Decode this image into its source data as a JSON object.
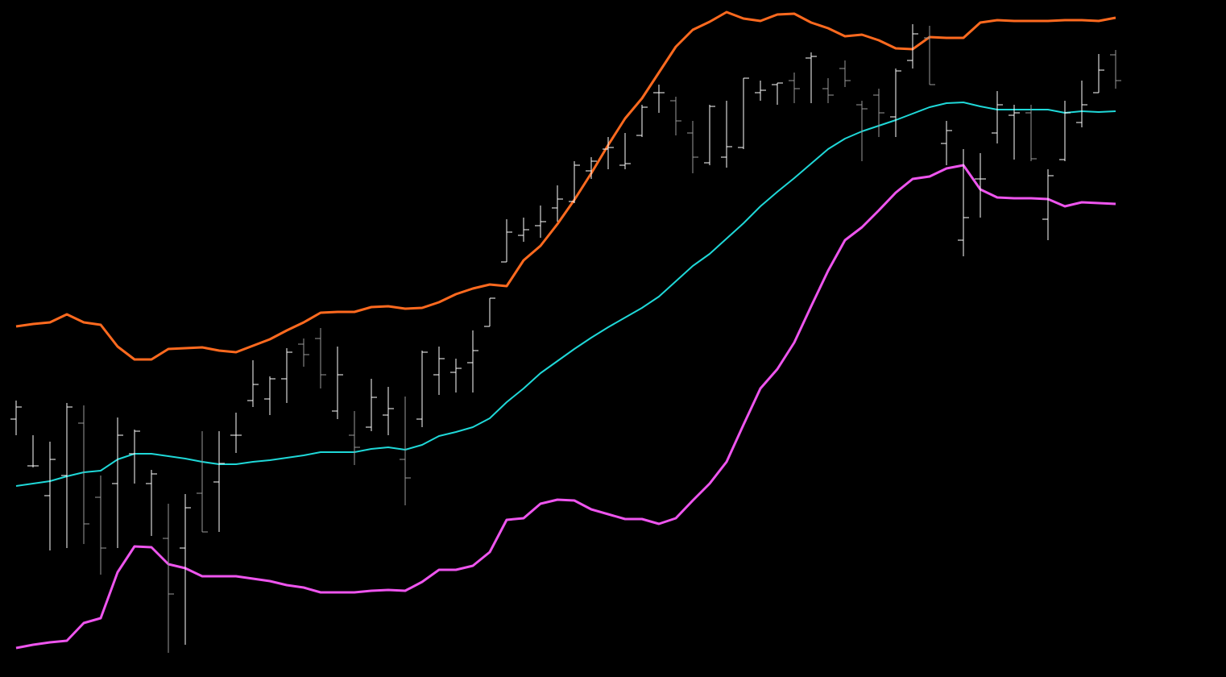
{
  "chart_data": {
    "type": "ohlc",
    "categories": [
      null,
      null,
      null,
      null,
      null,
      null,
      null,
      null,
      null,
      null,
      null,
      null,
      null,
      null,
      null,
      null,
      null,
      null,
      null,
      null,
      null,
      null,
      null,
      null,
      null,
      null,
      null,
      null,
      null,
      null,
      null,
      null,
      null,
      null,
      null,
      null,
      null,
      null,
      null,
      null,
      null,
      null,
      null,
      null,
      null,
      null,
      null,
      null,
      null,
      null,
      null,
      null,
      null,
      null,
      null,
      null,
      null,
      null,
      null,
      null,
      null,
      null,
      null,
      null,
      null,
      null
    ],
    "open": [
      320,
      262,
      225,
      250,
      315,
      223,
      240,
      277,
      240,
      172,
      160,
      228,
      242,
      300,
      343,
      345,
      370,
      413,
      420,
      330,
      300,
      310,
      325,
      270,
      320,
      375,
      378,
      390,
      435,
      515,
      548,
      560,
      582,
      590,
      628,
      655,
      635,
      672,
      725,
      715,
      675,
      638,
      645,
      657,
      725,
      735,
      740,
      768,
      730,
      755,
      710,
      722,
      695,
      765,
      793,
      662,
      542,
      618,
      675,
      697,
      700,
      568,
      642,
      688,
      725,
      772
    ],
    "high": [
      343,
      300,
      292,
      340,
      337,
      250,
      322,
      307,
      257,
      215,
      227,
      305,
      305,
      328,
      393,
      373,
      408,
      420,
      433,
      410,
      330,
      370,
      360,
      348,
      405,
      410,
      395,
      430,
      470,
      568,
      570,
      585,
      610,
      640,
      645,
      670,
      675,
      710,
      735,
      720,
      690,
      710,
      715,
      743,
      740,
      737,
      750,
      775,
      743,
      765,
      715,
      730,
      755,
      810,
      808,
      690,
      655,
      650,
      727,
      710,
      710,
      630,
      715,
      740,
      773,
      778
    ],
    "low": [
      300,
      260,
      157,
      160,
      165,
      127,
      160,
      240,
      175,
      30,
      40,
      180,
      180,
      278,
      335,
      325,
      340,
      385,
      358,
      320,
      263,
      305,
      300,
      213,
      310,
      350,
      353,
      353,
      435,
      515,
      540,
      545,
      565,
      588,
      618,
      630,
      630,
      670,
      700,
      672,
      625,
      635,
      632,
      655,
      715,
      710,
      712,
      712,
      712,
      732,
      640,
      670,
      670,
      755,
      735,
      635,
      522,
      570,
      662,
      642,
      640,
      542,
      640,
      682,
      725,
      730
    ],
    "close": [
      335,
      262,
      270,
      335,
      190,
      160,
      300,
      305,
      252,
      103,
      210,
      180,
      265,
      300,
      363,
      370,
      403,
      400,
      375,
      375,
      285,
      347,
      333,
      247,
      403,
      395,
      383,
      405,
      470,
      552,
      555,
      565,
      593,
      635,
      640,
      657,
      637,
      707,
      725,
      690,
      645,
      708,
      658,
      743,
      728,
      737,
      730,
      770,
      722,
      740,
      705,
      700,
      752,
      798,
      735,
      678,
      570,
      618,
      710,
      700,
      643,
      622,
      700,
      710,
      753,
      740
    ],
    "up_color": "#ffffff",
    "down_color": "#9a9a9a",
    "ylim": [
      0,
      840
    ],
    "series": [
      {
        "color": "#ff6a1f",
        "values": [
          435,
          438,
          440,
          450,
          440,
          437,
          410,
          394,
          394,
          407,
          408,
          409,
          405,
          403,
          411,
          419,
          430,
          440,
          452,
          453,
          453,
          459,
          460,
          457,
          458,
          465,
          475,
          482,
          487,
          485,
          517,
          535,
          562,
          592,
          625,
          660,
          693,
          718,
          750,
          782,
          803,
          813,
          825,
          817,
          814,
          822,
          823,
          812,
          805,
          795,
          797,
          790,
          780,
          779,
          794,
          793,
          793,
          812,
          815,
          814,
          814,
          814,
          815,
          815,
          814,
          818
        ]
      },
      {
        "color": "#1fd8d8",
        "values": [
          237,
          240,
          243,
          249,
          254,
          256,
          270,
          277,
          277,
          274,
          271,
          267,
          264,
          264,
          267,
          269,
          272,
          275,
          279,
          279,
          279,
          283,
          285,
          282,
          288,
          299,
          304,
          310,
          321,
          341,
          358,
          377,
          392,
          407,
          421,
          434,
          446,
          458,
          472,
          491,
          510,
          525,
          544,
          563,
          584,
          602,
          619,
          637,
          655,
          668,
          677,
          684,
          691,
          699,
          707,
          712,
          713,
          708,
          704,
          704,
          704,
          704,
          700,
          702,
          701,
          702
        ]
      },
      {
        "color": "#ee55ee",
        "values": [
          36,
          40,
          43,
          45,
          67,
          73,
          130,
          162,
          161,
          140,
          135,
          125,
          125,
          125,
          122,
          119,
          114,
          111,
          105,
          105,
          105,
          107,
          108,
          107,
          118,
          133,
          133,
          138,
          155,
          195,
          197,
          215,
          220,
          219,
          208,
          202,
          196,
          196,
          190,
          197,
          219,
          240,
          267,
          313,
          358,
          382,
          415,
          460,
          504,
          542,
          558,
          579,
          601,
          618,
          621,
          631,
          635,
          605,
          595,
          594,
          594,
          593,
          584,
          589,
          588,
          587
        ]
      }
    ]
  }
}
